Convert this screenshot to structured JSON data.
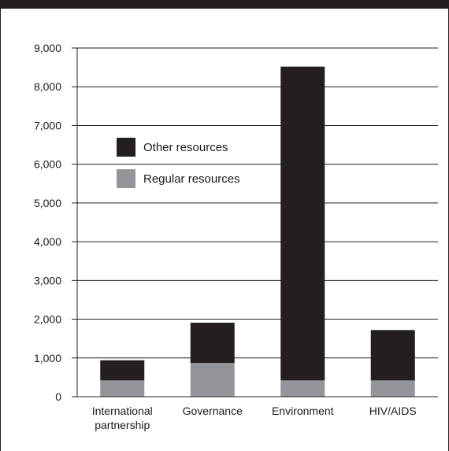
{
  "chart_data": {
    "type": "bar",
    "stacked": true,
    "categories": [
      "International partnership",
      "Governance",
      "Environment",
      "HIV/AIDS"
    ],
    "category_lines": [
      [
        "International",
        "partnership"
      ],
      [
        "Governance"
      ],
      [
        "Environment"
      ],
      [
        "HIV/AIDS"
      ]
    ],
    "series": [
      {
        "name": "Regular resources",
        "values": [
          420,
          870,
          420,
          420
        ],
        "color": "#939598"
      },
      {
        "name": "Other resources",
        "values": [
          520,
          1040,
          8100,
          1300
        ],
        "color": "#231f20"
      }
    ],
    "legend_order": [
      "Other resources",
      "Regular resources"
    ],
    "ylim": [
      0,
      9000
    ],
    "yticks": [
      0,
      1000,
      2000,
      3000,
      4000,
      5000,
      6000,
      7000,
      8000,
      9000
    ],
    "ytick_labels": [
      "0",
      "1,000",
      "2,000",
      "3,000",
      "4,000",
      "5,000",
      "6,000",
      "7,000",
      "8,000",
      "9,000"
    ],
    "grid": true,
    "legend_position": "top-left"
  }
}
